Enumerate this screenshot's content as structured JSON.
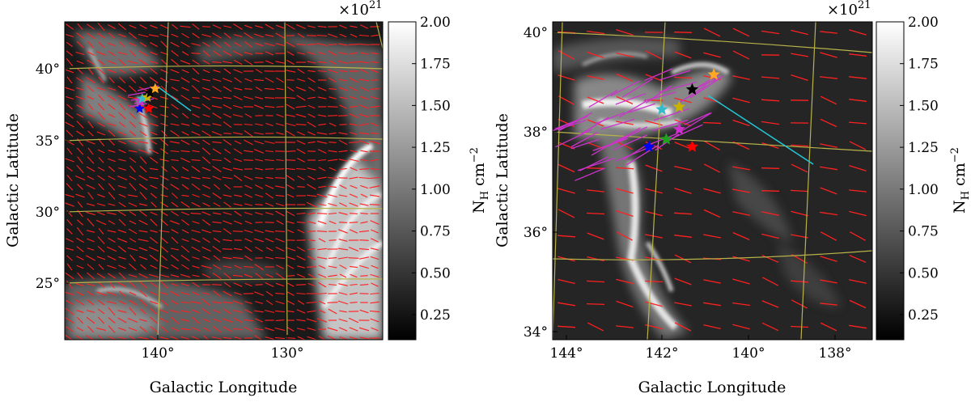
{
  "colors": {
    "vector_planck": "#ff2020",
    "vector_starlight": "#cc33cc",
    "grid": "#b8b24a",
    "cyan_line": "#22c8d8",
    "star_colors": [
      "#0000ff",
      "#ff0000",
      "#1fa31f",
      "#cc33cc",
      "#c8b400",
      "#33bbcc",
      "#ffaa22",
      "#000000"
    ]
  },
  "chart_data": [
    {
      "type": "heatmap",
      "panel": "left",
      "xlabel": "Galactic Longitude",
      "ylabel": "Galactic Latitude",
      "x_ticks": [
        "140°",
        "130°"
      ],
      "y_ticks": [
        "40°",
        "35°",
        "30°",
        "25°"
      ],
      "colorbar": {
        "label": "N",
        "label_sub": "H",
        "label_unit": "cm",
        "label_exp": "−2",
        "scale_prefix": "×10",
        "scale_exp": "21",
        "range": [
          0.1,
          2.0
        ],
        "ticks": [
          "2.00",
          "1.75",
          "1.50",
          "1.25",
          "1.00",
          "0.75",
          "0.50",
          "0.25"
        ],
        "tick_values": [
          2.0,
          1.75,
          1.5,
          1.25,
          1.0,
          0.75,
          0.5,
          0.25
        ]
      },
      "stars": [
        {
          "color_index": 0,
          "l": 141.4,
          "b": 37.2
        },
        {
          "color_index": 1,
          "l": 140.7,
          "b": 37.2
        },
        {
          "color_index": 3,
          "l": 141.3,
          "b": 37.7
        },
        {
          "color_index": 5,
          "l": 141.2,
          "b": 37.9
        },
        {
          "color_index": 4,
          "l": 140.8,
          "b": 38.0
        },
        {
          "color_index": 7,
          "l": 140.6,
          "b": 38.3
        },
        {
          "color_index": 6,
          "l": 140.2,
          "b": 38.6
        }
      ]
    },
    {
      "type": "heatmap",
      "panel": "right",
      "xlabel": "Galactic Longitude",
      "ylabel": "Galactic Latitude",
      "x_ticks": [
        "144°",
        "142°",
        "140°",
        "138°"
      ],
      "y_ticks": [
        "40°",
        "38°",
        "36°",
        "34°"
      ],
      "colorbar": {
        "label": "N",
        "label_sub": "H",
        "label_unit": "cm",
        "label_exp": "−2",
        "scale_prefix": "×10",
        "scale_exp": "21",
        "range": [
          0.1,
          2.0
        ],
        "ticks": [
          "2.00",
          "1.75",
          "1.50",
          "1.25",
          "1.00",
          "0.75",
          "0.50",
          "0.25"
        ],
        "tick_values": [
          2.0,
          1.75,
          1.5,
          1.25,
          1.0,
          0.75,
          0.5,
          0.25
        ]
      },
      "stars": [
        {
          "color_index": 0,
          "l": 142.3,
          "b": 37.7
        },
        {
          "color_index": 2,
          "l": 141.9,
          "b": 37.85
        },
        {
          "color_index": 1,
          "l": 141.3,
          "b": 37.7
        },
        {
          "color_index": 3,
          "l": 141.6,
          "b": 38.05
        },
        {
          "color_index": 5,
          "l": 142.0,
          "b": 38.45
        },
        {
          "color_index": 4,
          "l": 141.6,
          "b": 38.5
        },
        {
          "color_index": 7,
          "l": 141.3,
          "b": 38.85
        },
        {
          "color_index": 6,
          "l": 140.8,
          "b": 39.15
        }
      ]
    }
  ]
}
